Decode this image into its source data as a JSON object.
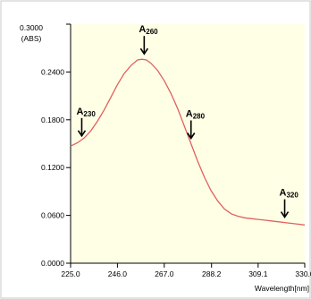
{
  "chart_data": {
    "type": "line",
    "title": "",
    "y_unit_top": "0.3000",
    "y_unit_label": "(ABS)",
    "xlabel": "Wavelength[nm]",
    "xlim": [
      225.0,
      330.0
    ],
    "ylim": [
      0.0,
      0.3
    ],
    "x_ticks": [
      225.0,
      246.0,
      267.0,
      288.2,
      309.1,
      330.0
    ],
    "x_tick_labels": [
      "225.0",
      "246.0",
      "267.0",
      "288.2",
      "309.1",
      "330.0"
    ],
    "y_ticks": [
      0.0,
      0.06,
      0.12,
      0.18,
      0.24
    ],
    "y_tick_labels": [
      "0.0000",
      "0.0600",
      "0.1200",
      "0.1800",
      "0.2400"
    ],
    "grid": false,
    "colors": {
      "plot_background": "#FFFFE6",
      "line": "#E06060",
      "frame": "#C8C8C8"
    },
    "series": [
      {
        "x": [
          225,
          228,
          231,
          234,
          237,
          240,
          243,
          246,
          249,
          252,
          255,
          257,
          259,
          261,
          264,
          267,
          270,
          273,
          276,
          279,
          282,
          285,
          288,
          291,
          294,
          297,
          300,
          303,
          306,
          309,
          312,
          315,
          318,
          321,
          324,
          327,
          330
        ],
        "y": [
          0.147,
          0.151,
          0.157,
          0.166,
          0.178,
          0.192,
          0.208,
          0.224,
          0.238,
          0.248,
          0.255,
          0.256,
          0.255,
          0.251,
          0.242,
          0.229,
          0.213,
          0.194,
          0.172,
          0.15,
          0.128,
          0.108,
          0.091,
          0.078,
          0.068,
          0.062,
          0.059,
          0.057,
          0.056,
          0.055,
          0.054,
          0.053,
          0.052,
          0.051,
          0.05,
          0.049,
          0.048
        ]
      }
    ],
    "annotations": [
      {
        "main": "A",
        "sub": "230",
        "x": 230,
        "y": 0.153
      },
      {
        "main": "A",
        "sub": "260",
        "x": 258,
        "y": 0.256
      },
      {
        "main": "A",
        "sub": "280",
        "x": 279,
        "y": 0.15
      },
      {
        "main": "A",
        "sub": "320",
        "x": 321,
        "y": 0.051
      }
    ]
  }
}
